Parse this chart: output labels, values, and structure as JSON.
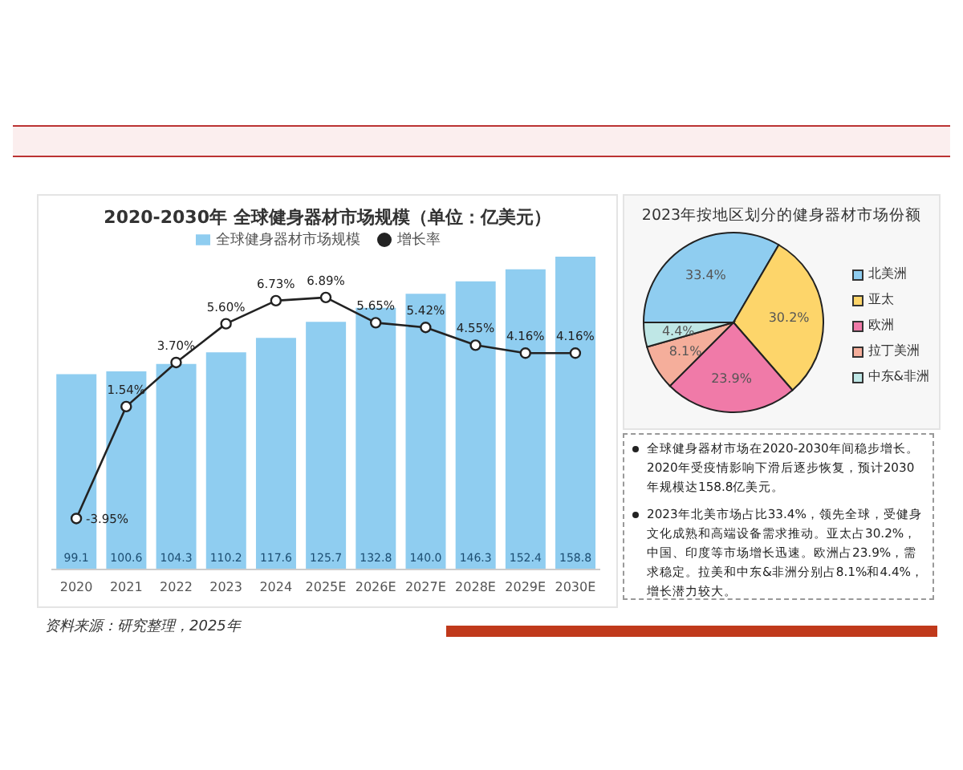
{
  "chart_data": [
    {
      "type": "bar",
      "title": "2020-2030年  全球健身器材市场规模（单位：亿美元）",
      "categories": [
        "2020",
        "2021",
        "2022",
        "2023",
        "2024",
        "2025E",
        "2026E",
        "2027E",
        "2028E",
        "2029E",
        "2030E"
      ],
      "series": [
        {
          "name": "全球健身器材市场规模",
          "color": "#8fcdf0",
          "values": [
            99.1,
            100.6,
            104.3,
            110.2,
            117.6,
            125.7,
            132.8,
            140.0,
            146.3,
            152.4,
            158.8
          ],
          "value_labels": [
            "99.1",
            "100.6",
            "104.3",
            "110.2",
            "117.6",
            "125.7",
            "132.8",
            "140.0",
            "146.3",
            "152.4",
            "158.8"
          ]
        },
        {
          "name": "增长率",
          "type": "line",
          "axis": "y2",
          "color": "#222222",
          "marker": "circle",
          "values": [
            -3.95,
            1.54,
            3.7,
            5.6,
            6.73,
            6.89,
            5.65,
            5.42,
            4.55,
            4.16,
            4.16
          ],
          "value_labels": [
            "-3.95%",
            "1.54%",
            "3.70%",
            "5.60%",
            "6.73%",
            "6.89%",
            "5.65%",
            "5.42%",
            "4.55%",
            "4.16%",
            "4.16%"
          ]
        }
      ],
      "legend": "top",
      "tick_labels": "x",
      "annotations": [
        "资料来源：研究整理，2025年"
      ]
    },
    {
      "type": "pie",
      "title": "2023年按地区划分的健身器材市场份额",
      "categories": [
        "北美洲",
        "亚太",
        "欧洲",
        "拉丁美洲",
        "中东&非洲"
      ],
      "values": [
        33.4,
        30.2,
        23.9,
        8.1,
        4.4
      ],
      "colors": [
        "#8fcdf0",
        "#fdd56a",
        "#f07aa8",
        "#f5ae9b",
        "#bfe7e6"
      ],
      "value_labels": [
        "33.4%",
        "30.2%",
        "23.9%",
        "8.1%",
        "4.4%"
      ],
      "legend": "right"
    },
    {
      "type": "other",
      "annotations": [
        "全球健身器材市场在2020-2030年间稳步增长。2020年受疫情影响下滑后逐步恢复，预计2030年规模达158.8亿美元。",
        "2023年北美市场占比33.4%，领先全球，受健身文化成熟和高端设备需求推动。亚太占30.2%，中国、印度等市场增长迅速。欧洲占23.9%，需求稳定。拉美和中东&非洲分别占8.1%和4.4%，增长潜力较大。"
      ]
    }
  ]
}
